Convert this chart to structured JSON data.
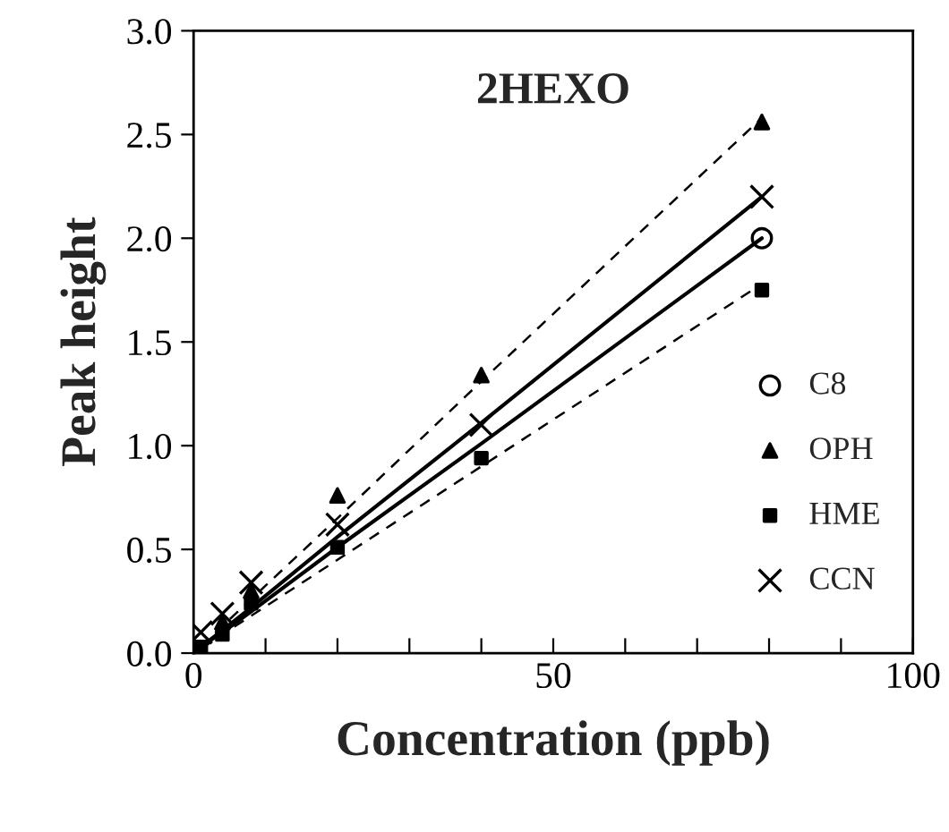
{
  "chart_data": {
    "type": "scatter",
    "title": "2HEXO",
    "xlabel": "Concentration (ppb)",
    "ylabel": "Peak height",
    "x": [
      1,
      4,
      8,
      20,
      40,
      79
    ],
    "series": [
      {
        "name": "C8",
        "color": "#000000",
        "marker": "circle",
        "values": [
          null,
          null,
          null,
          null,
          null,
          2.0
        ]
      },
      {
        "name": "OPH",
        "color": "#000000",
        "marker": "triangle",
        "values": [
          null,
          0.15,
          0.3,
          0.76,
          1.34,
          2.56
        ]
      },
      {
        "name": "HME",
        "color": "#000000",
        "marker": "square",
        "values": [
          0.03,
          0.09,
          0.24,
          0.51,
          0.94,
          1.75
        ]
      },
      {
        "name": "CCN",
        "color": "#000000",
        "marker": "cross",
        "values": [
          0.1,
          0.19,
          0.34,
          0.62,
          1.1,
          2.2
        ]
      },
      {
        "type": "line",
        "color": "#000000",
        "line_style": "solid",
        "values": [
          0.03,
          0.1,
          0.2,
          0.51,
          1.01,
          2.0
        ]
      },
      {
        "type": "line",
        "color": "#000000",
        "line_style": "dashed",
        "values": [
          0.03,
          0.13,
          0.26,
          0.65,
          1.31,
          2.58
        ]
      },
      {
        "type": "line",
        "color": "#000000",
        "line_style": "dashed",
        "values": [
          0.02,
          0.09,
          0.18,
          0.45,
          0.9,
          1.78
        ]
      },
      {
        "type": "line",
        "color": "#000000",
        "line_style": "solid",
        "values": [
          0.03,
          0.11,
          0.22,
          0.56,
          1.11,
          2.2
        ]
      }
    ],
    "xlim": [
      0,
      100
    ],
    "ylim": [
      0,
      3.0
    ],
    "xticks": [
      0,
      {
        "value": 10,
        "label": null
      },
      {
        "value": 20,
        "label": null
      },
      {
        "value": 30,
        "label": null
      },
      {
        "value": 40,
        "label": null
      },
      50,
      {
        "value": 60,
        "label": null
      },
      {
        "value": 70,
        "label": null
      },
      {
        "value": 80,
        "label": null
      },
      {
        "value": 90,
        "label": null
      },
      100
    ],
    "yticks": [
      {
        "value": 0,
        "label": "0.0"
      },
      0.5,
      {
        "value": 1.0,
        "label": "1.0"
      },
      1.5,
      {
        "value": 2.0,
        "label": "2.0"
      },
      2.5,
      {
        "value": 3.0,
        "label": "3.0"
      }
    ],
    "grid": false,
    "legend": "bottom right"
  }
}
